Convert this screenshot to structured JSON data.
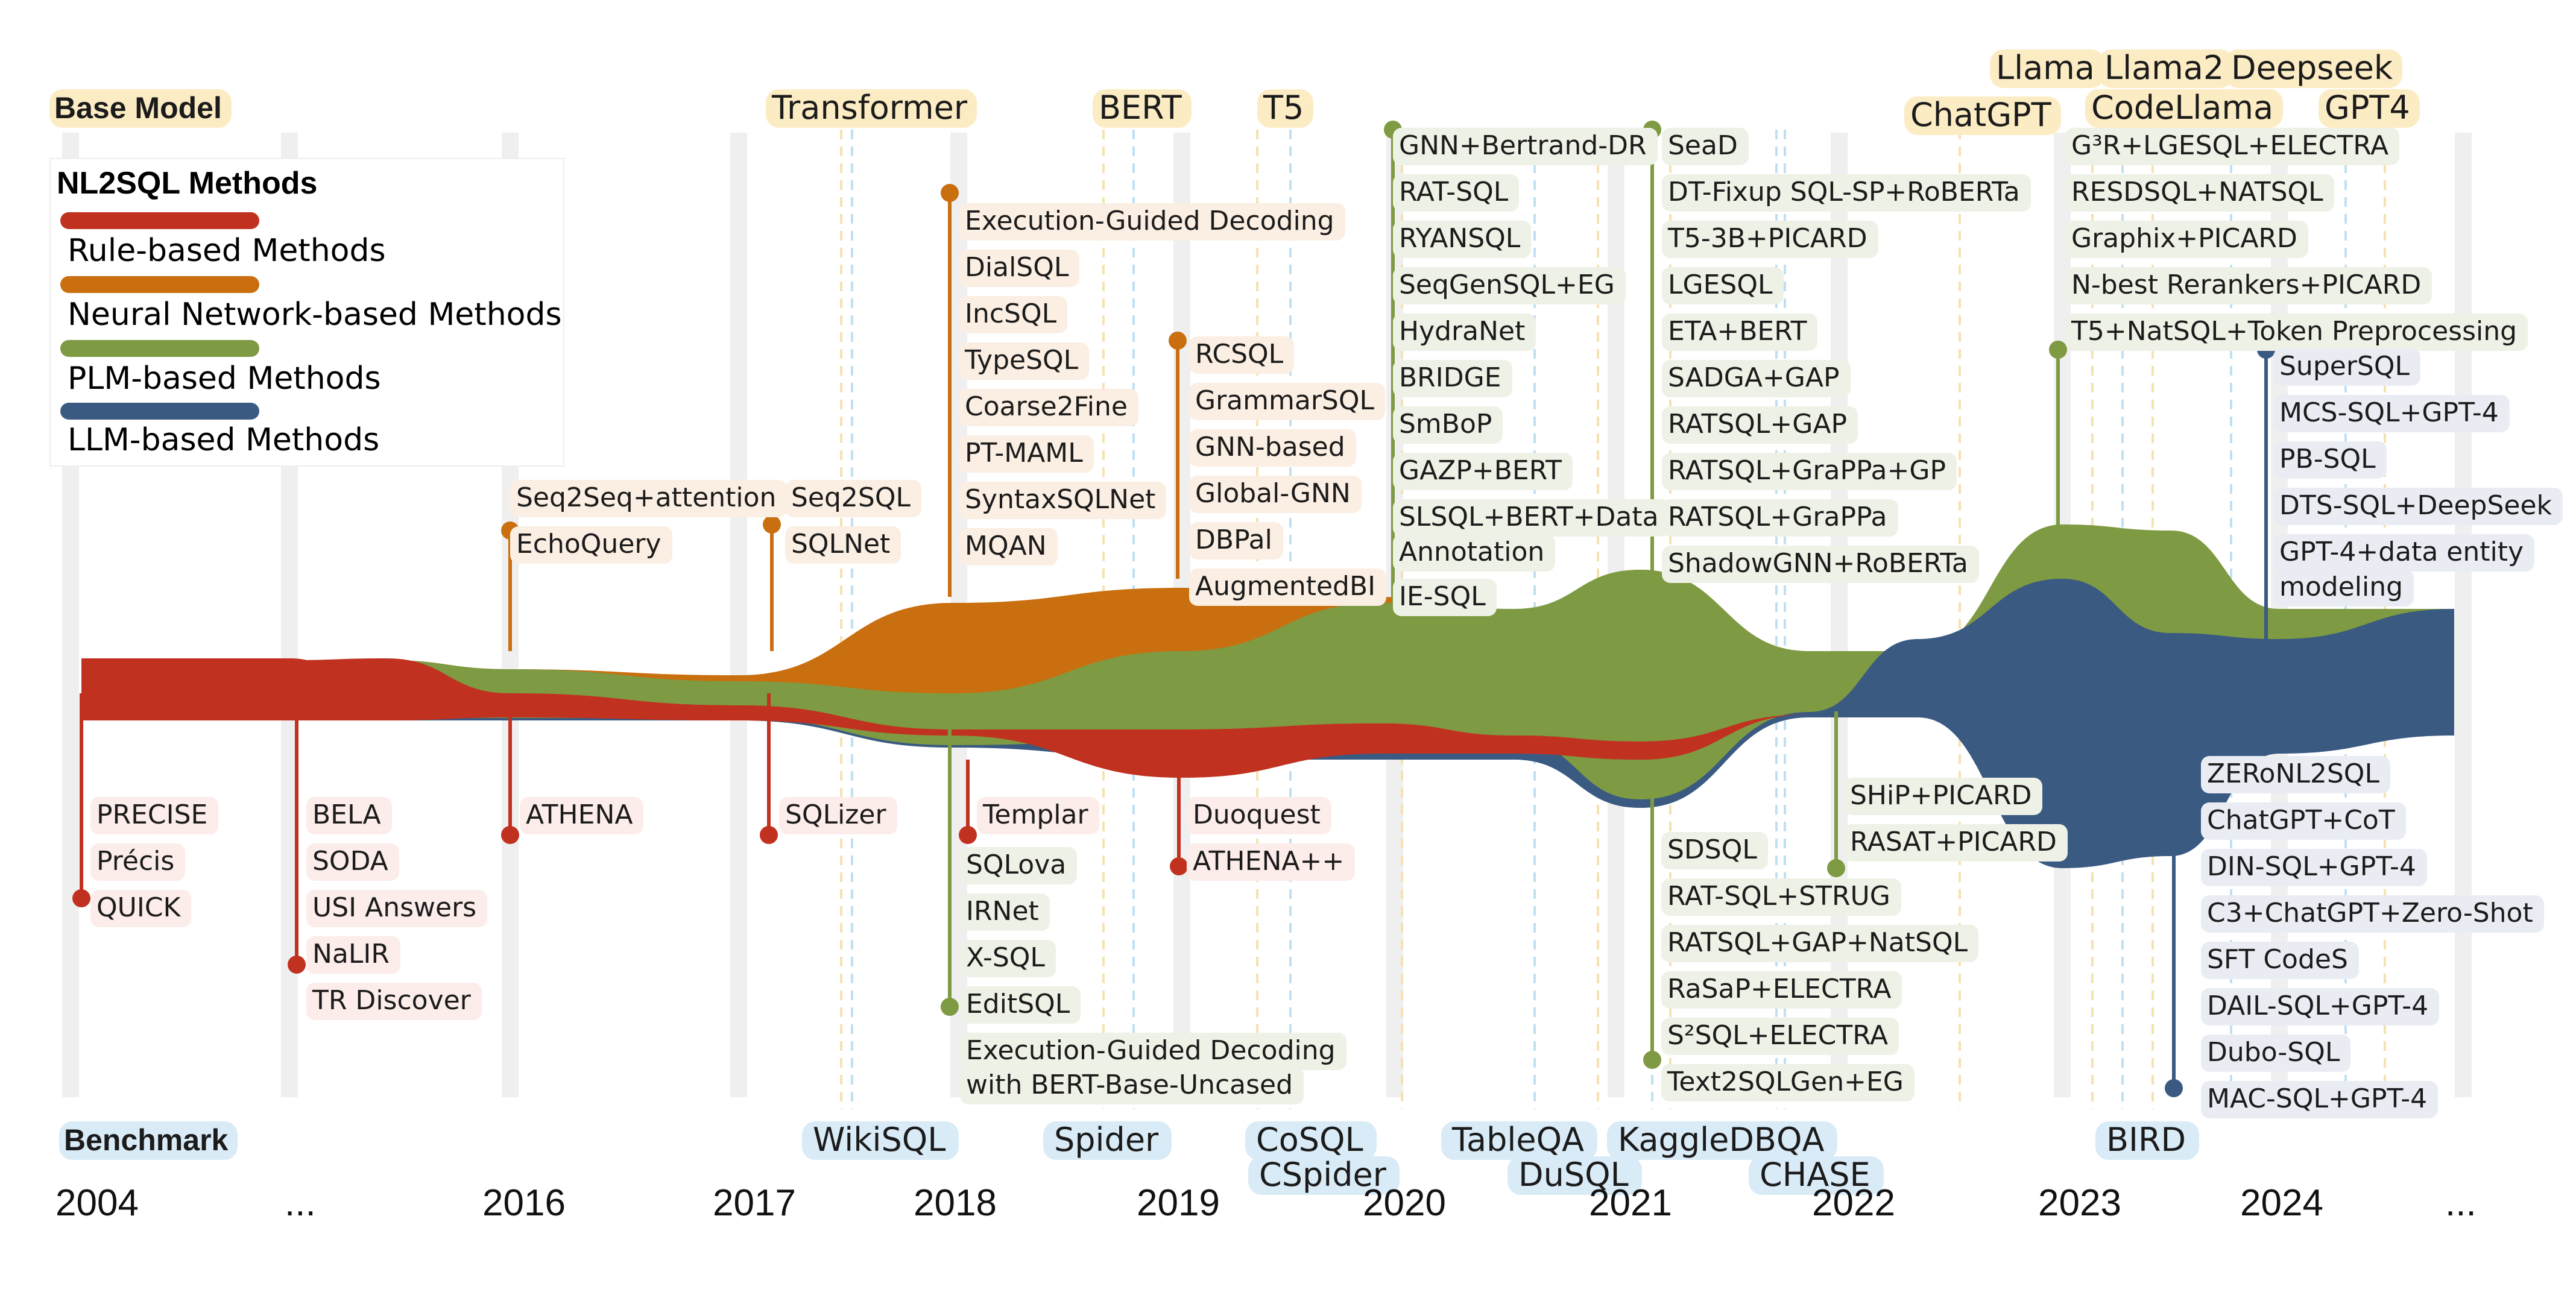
{
  "headers": {
    "base_model": "Base Model",
    "benchmark": "Benchmark"
  },
  "legend": {
    "title": "NL2SQL Methods",
    "items": [
      {
        "label": "Rule-based Methods",
        "color": "#c1311f"
      },
      {
        "label": "Neural Network-based Methods",
        "color": "#c96f0f"
      },
      {
        "label": "PLM-based Methods",
        "color": "#7e9a42"
      },
      {
        "label": "LLM-based Methods",
        "color": "#3a5a82"
      }
    ]
  },
  "years": [
    "2004",
    "...",
    "2016",
    "2017",
    "2018",
    "2019",
    "2020",
    "2021",
    "2022",
    "2023",
    "2024",
    "..."
  ],
  "base_models": [
    "Transformer",
    "BERT",
    "T5",
    "ChatGPT",
    "Llama",
    "Llama2",
    "CodeLlama",
    "Deepseek",
    "GPT4"
  ],
  "benchmarks": [
    "WikiSQL",
    "Spider",
    "CoSQL",
    "CSpider",
    "TableQA",
    "DuSQL",
    "KaggleDBQA",
    "CHASE",
    "BIRD"
  ],
  "rule": {
    "g2004": [
      "PRECISE",
      "Précis",
      "QUICK"
    ],
    "gdots": [
      "BELA",
      "SODA",
      "USI Answers",
      "NaLIR",
      "TR Discover"
    ],
    "g2016": [
      "ATHENA"
    ],
    "g2017": [
      "SQLizer"
    ],
    "g2018": [
      "Templar"
    ],
    "g2019": [
      "Duoquest",
      "ATHENA++"
    ]
  },
  "nn": {
    "g2016": [
      "Seq2Seq+attention",
      "EchoQuery"
    ],
    "g2017": [
      "Seq2SQL",
      "SQLNet"
    ],
    "g2018": [
      "Execution-Guided Decoding",
      "DialSQL",
      "IncSQL",
      "TypeSQL",
      "Coarse2Fine",
      "PT-MAML",
      "SyntaxSQLNet",
      "MQAN"
    ],
    "g2019": [
      "RCSQL",
      "GrammarSQL",
      "GNN-based",
      "Global-GNN",
      "DBPal",
      "AugmentedBI"
    ]
  },
  "plm": {
    "g2018": [
      "SQLova",
      "IRNet",
      "X-SQL",
      "EditSQL",
      "Execution-Guided Decoding",
      "with BERT-Base-Uncased"
    ],
    "g2020": [
      "GNN+Bertrand-DR",
      "RAT-SQL",
      "RYANSQL",
      "SeqGenSQL+EG",
      "HydraNet",
      "BRIDGE",
      "SmBoP",
      "GAZP+BERT",
      "SLSQL+BERT+Data",
      "Annotation",
      "IE-SQL"
    ],
    "g2021top": [
      "SeaD",
      "DT-Fixup SQL-SP+RoBERTa",
      "T5-3B+PICARD",
      "LGESQL",
      "ETA+BERT",
      "SADGA+GAP",
      "RATSQL+GAP",
      "RATSQL+GraPPa+GP",
      "RATSQL+GraPPa",
      "ShadowGNN+RoBERTa"
    ],
    "g2021bot": [
      "SDSQL",
      "RAT-SQL+STRUG",
      "RATSQL+GAP+NatSQL",
      "RaSaP+ELECTRA",
      "S²SQL+ELECTRA",
      "Text2SQLGen+EG"
    ],
    "g2022": [
      "SHiP+PICARD",
      "RASAT+PICARD"
    ],
    "g2023": [
      "G³R+LGESQL+ELECTRA",
      "RESDSQL+NATSQL",
      "Graphix+PICARD",
      "N-best Rerankers+PICARD",
      "T5+NatSQL+Token Preprocessing"
    ]
  },
  "llm": {
    "g2024top": [
      "SuperSQL",
      "MCS-SQL+GPT-4",
      "PB-SQL",
      "DTS-SQL+DeepSeek",
      "GPT-4+data entity",
      "modeling"
    ],
    "g2024bot": [
      "ZERoNL2SQL",
      "ChatGPT+CoT",
      "DIN-SQL+GPT-4",
      "C3+ChatGPT+Zero-Shot",
      "SFT CodeS",
      "DAIL-SQL+GPT-4",
      "Dubo-SQL",
      "MAC-SQL+GPT-4"
    ]
  },
  "colors": {
    "rule": "#c1311f",
    "nn": "#c96f0f",
    "plm": "#7e9a42",
    "llm": "#3a5a82",
    "base_highlight": "#fcecc4",
    "bench_highlight": "#d9ebf6"
  }
}
